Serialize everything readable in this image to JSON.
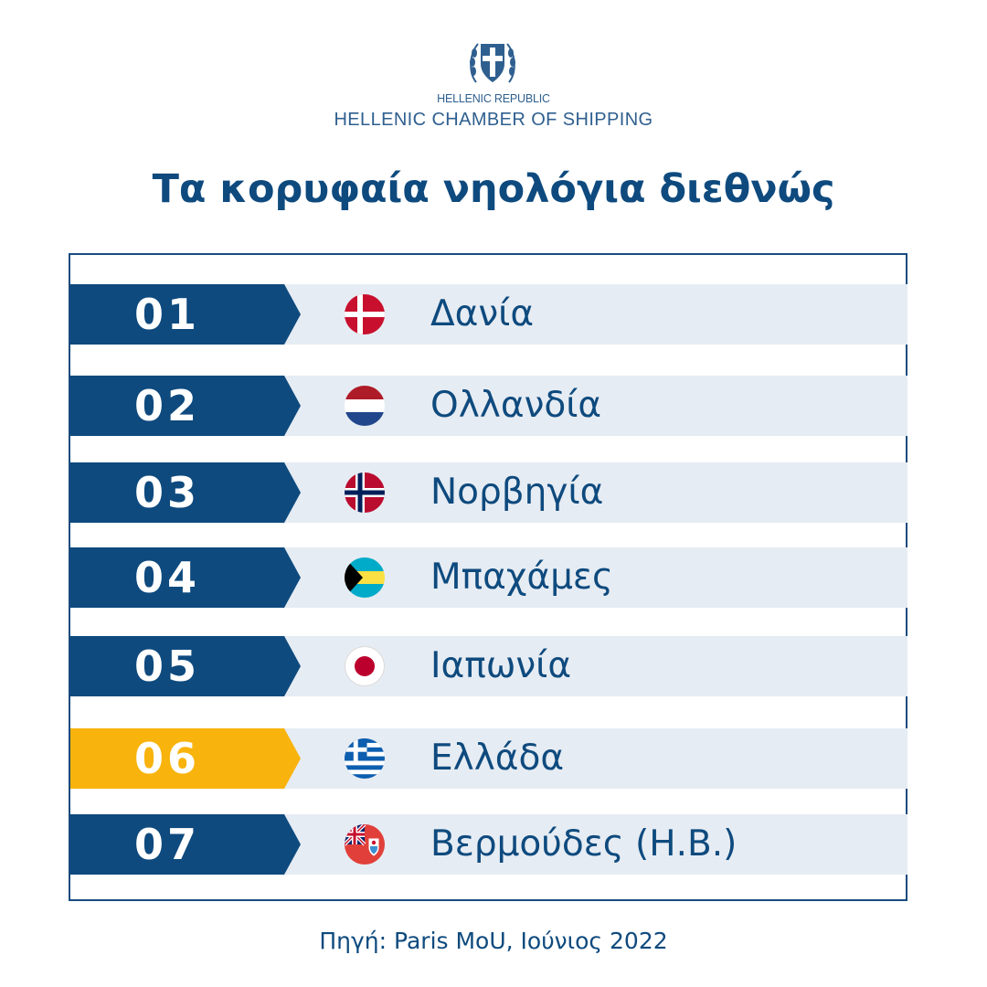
{
  "header": {
    "org_small": "HELLENIC REPUBLIC",
    "org_name": "HELLENIC CHAMBER OF SHIPPING",
    "emblem_icon": "greek-coat-of-arms-icon"
  },
  "title": "Τα κορυφαία νηολόγια διεθνώς",
  "ranking": [
    {
      "rank": "01",
      "country": "Δανία",
      "flag_icon": "denmark-flag-icon"
    },
    {
      "rank": "02",
      "country": "Ολλανδία",
      "flag_icon": "netherlands-flag-icon"
    },
    {
      "rank": "03",
      "country": "Νορβηγία",
      "flag_icon": "norway-flag-icon"
    },
    {
      "rank": "04",
      "country": "Μπαχάμες",
      "flag_icon": "bahamas-flag-icon"
    },
    {
      "rank": "05",
      "country": "Ιαπωνία",
      "flag_icon": "japan-flag-icon"
    },
    {
      "rank": "06",
      "country": "Ελλάδα",
      "flag_icon": "greece-flag-icon",
      "highlighted": true
    },
    {
      "rank": "07",
      "country": "Βερμούδες (Η.Β.)",
      "flag_icon": "bermuda-flag-icon"
    }
  ],
  "colors": {
    "primary": "#0e4a7e",
    "highlight": "#f8b30c",
    "row_background": "#e6ecf3"
  },
  "source": "Πηγή: Paris MoU, Ιούνιος 2022"
}
